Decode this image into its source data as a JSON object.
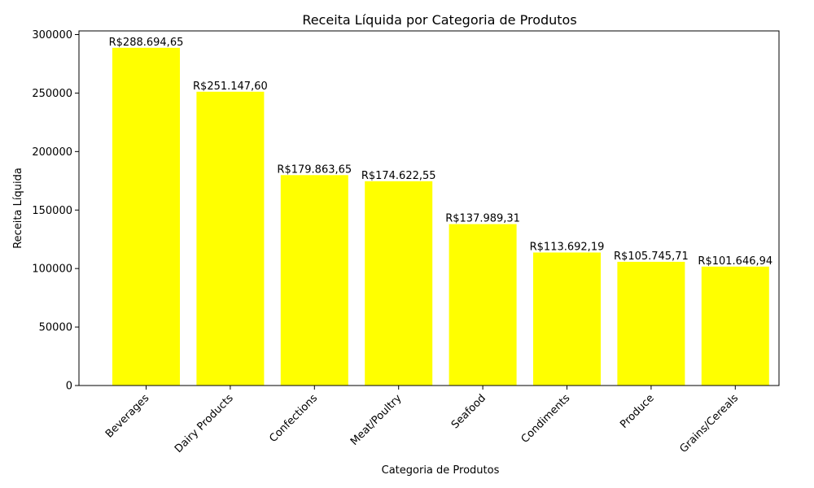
{
  "chart_data": {
    "type": "bar",
    "title": "Receita Líquida por Categoria de Produtos",
    "xlabel": "Categoria de Produtos",
    "ylabel": "Receita Líquida",
    "categories": [
      "Beverages",
      "Dairy Products",
      "Confections",
      "Meat/Poultry",
      "Seafood",
      "Condiments",
      "Produce",
      "Grains/Cereals"
    ],
    "values": [
      288694.65,
      251147.6,
      179863.65,
      174622.55,
      137989.31,
      113692.19,
      105745.71,
      101646.94
    ],
    "data_labels": [
      "R$288.694,65",
      "R$251.147,60",
      "R$179.863,65",
      "R$174.622,55",
      "R$137.989,31",
      "R$113.692,19",
      "R$105.745,71",
      "R$101.646,94"
    ],
    "yticks": [
      0,
      50000,
      100000,
      150000,
      200000,
      250000,
      300000
    ],
    "ylim": [
      0,
      303129
    ],
    "bar_color": "#ffff00",
    "grid": false,
    "legend": "none"
  }
}
